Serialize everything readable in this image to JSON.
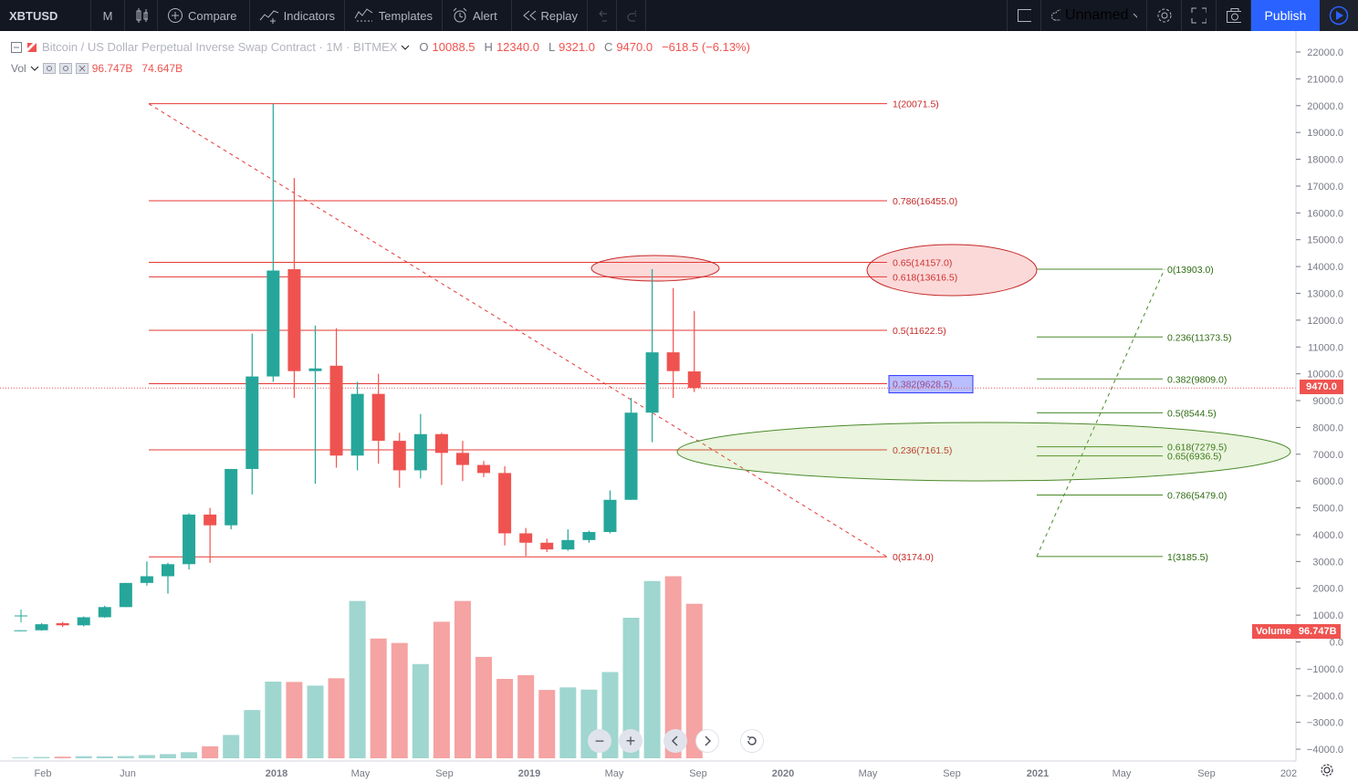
{
  "toolbar": {
    "symbol": "XBTUSD",
    "interval": "M",
    "compare": "Compare",
    "indicators": "Indicators",
    "templates": "Templates",
    "alert": "Alert",
    "replay": "Replay",
    "layout_name": "Unnamed",
    "publish": "Publish"
  },
  "legend": {
    "title": "Bitcoin / US Dollar Perpetual Inverse Swap Contract · 1M · BITMEX",
    "o_label": "O",
    "o_value": "10088.5",
    "h_label": "H",
    "h_value": "12340.0",
    "l_label": "L",
    "l_value": "9321.0",
    "c_label": "C",
    "c_value": "9470.0",
    "change": "−618.5 (−6.13%)",
    "vol_label": "Vol",
    "vol_value1": "96.747B",
    "vol_value2": "74.647B"
  },
  "badges": {
    "price": "9470.0",
    "volume_label": "Volume",
    "volume_value": "96.747B"
  },
  "colors": {
    "up": "#26a69a",
    "down": "#ef5350",
    "up_volume": "#9fd6d0",
    "down_volume": "#f5a3a3",
    "fib_red": "#e53935",
    "fib_green": "#4a8a2a"
  },
  "chart_data": {
    "type": "candlestick",
    "y_axis_ticks": [
      "22000.0",
      "21000.0",
      "20000.0",
      "19000.0",
      "18000.0",
      "17000.0",
      "16000.0",
      "15000.0",
      "14000.0",
      "13000.0",
      "12000.0",
      "11000.0",
      "10000.0",
      "9000.0",
      "8000.0",
      "7000.0",
      "6000.0",
      "5000.0",
      "4000.0",
      "3000.0",
      "2000.0",
      "1000.0",
      "0.0",
      "−1000.0",
      "−2000.0",
      "−3000.0",
      "−4000.0"
    ],
    "x_axis_ticks": [
      "Feb",
      "Jun",
      "2018",
      "May",
      "Sep",
      "2019",
      "May",
      "Sep",
      "2020",
      "May",
      "Sep",
      "2021",
      "May",
      "Sep",
      "202"
    ],
    "candles": [
      {
        "o": 430,
        "h": 440,
        "l": 420,
        "c": 435,
        "v": 0.5
      },
      {
        "o": 435,
        "h": 700,
        "l": 420,
        "c": 660,
        "v": 0.8
      },
      {
        "o": 700,
        "h": 750,
        "l": 560,
        "c": 620,
        "v": 1.0
      },
      {
        "o": 620,
        "h": 950,
        "l": 580,
        "c": 920,
        "v": 1.3
      },
      {
        "o": 920,
        "h": 1350,
        "l": 900,
        "c": 1300,
        "v": 1.2
      },
      {
        "o": 1300,
        "h": 2200,
        "l": 1300,
        "c": 2200,
        "v": 1.4
      },
      {
        "o": 2200,
        "h": 3000,
        "l": 2100,
        "c": 2450,
        "v": 2.0
      },
      {
        "o": 2450,
        "h": 2950,
        "l": 1800,
        "c": 2900,
        "v": 2.6
      },
      {
        "o": 2900,
        "h": 4800,
        "l": 2700,
        "c": 4750,
        "v": 3.8
      },
      {
        "o": 4750,
        "h": 5000,
        "l": 2950,
        "c": 4350,
        "v": 7.5
      },
      {
        "o": 4350,
        "h": 6450,
        "l": 4200,
        "c": 6450,
        "v": 14.6
      },
      {
        "o": 6450,
        "h": 11500,
        "l": 5500,
        "c": 9900,
        "v": 30.2
      },
      {
        "o": 9900,
        "h": 20071,
        "l": 9700,
        "c": 13850,
        "v": 48.0
      },
      {
        "o": 13900,
        "h": 17300,
        "l": 9100,
        "c": 10100,
        "v": 47.8
      },
      {
        "o": 10100,
        "h": 11800,
        "l": 5900,
        "c": 10200,
        "v": 45.5
      },
      {
        "o": 10300,
        "h": 11700,
        "l": 6500,
        "c": 6950,
        "v": 50.1
      },
      {
        "o": 6950,
        "h": 9700,
        "l": 6400,
        "c": 9250,
        "v": 98.5
      },
      {
        "o": 9250,
        "h": 10000,
        "l": 6650,
        "c": 7500,
        "v": 75.0
      },
      {
        "o": 7500,
        "h": 7800,
        "l": 5750,
        "c": 6400,
        "v": 72.2
      },
      {
        "o": 6400,
        "h": 8500,
        "l": 6100,
        "c": 7750,
        "v": 59.0
      },
      {
        "o": 7750,
        "h": 7800,
        "l": 5850,
        "c": 7050,
        "v": 85.5
      },
      {
        "o": 7050,
        "h": 7500,
        "l": 6000,
        "c": 6600,
        "v": 98.5
      },
      {
        "o": 6600,
        "h": 6750,
        "l": 6150,
        "c": 6300,
        "v": 63.5
      },
      {
        "o": 6300,
        "h": 6550,
        "l": 3600,
        "c": 4050,
        "v": 49.7
      },
      {
        "o": 4050,
        "h": 4250,
        "l": 3200,
        "c": 3700,
        "v": 52.0
      },
      {
        "o": 3700,
        "h": 3850,
        "l": 3350,
        "c": 3450,
        "v": 42.8
      },
      {
        "o": 3450,
        "h": 4200,
        "l": 3400,
        "c": 3800,
        "v": 44.4
      },
      {
        "o": 3800,
        "h": 4150,
        "l": 3700,
        "c": 4100,
        "v": 43.0
      },
      {
        "o": 4100,
        "h": 5650,
        "l": 4050,
        "c": 5300,
        "v": 54.0
      },
      {
        "o": 5300,
        "h": 9100,
        "l": 5300,
        "c": 8550,
        "v": 88.0
      },
      {
        "o": 8550,
        "h": 13903,
        "l": 7450,
        "c": 10800,
        "v": 111.0
      },
      {
        "o": 10800,
        "h": 13200,
        "l": 9100,
        "c": 10100,
        "v": 114.0
      },
      {
        "o": 10088.5,
        "h": 12340,
        "l": 9321,
        "c": 9470,
        "v": 96.747
      }
    ],
    "fib_retracement_red": {
      "levels": [
        {
          "label": "1(20071.5)",
          "price": 20071.5
        },
        {
          "label": "0.786(16455.0)",
          "price": 16455.0
        },
        {
          "label": "0.65(14157.0)",
          "price": 14157.0
        },
        {
          "label": "0.618(13616.5)",
          "price": 13616.5
        },
        {
          "label": "0.5(11622.5)",
          "price": 11622.5
        },
        {
          "label": "0.382(9628.5)",
          "price": 9628.5
        },
        {
          "label": "0.236(7161.5)",
          "price": 7161.5
        },
        {
          "label": "0(3174.0)",
          "price": 3174.0
        }
      ]
    },
    "fib_retracement_green": {
      "levels": [
        {
          "label": "0(13903.0)",
          "price": 13903.0
        },
        {
          "label": "0.236(11373.5)",
          "price": 11373.5
        },
        {
          "label": "0.382(9809.0)",
          "price": 9809.0
        },
        {
          "label": "0.5(8544.5)",
          "price": 8544.5
        },
        {
          "label": "0.618(7279.5)",
          "price": 7279.5
        },
        {
          "label": "0.65(6936.5)",
          "price": 6936.5
        },
        {
          "label": "0.786(5479.0)",
          "price": 5479.0
        },
        {
          "label": "1(3185.5)",
          "price": 3185.5
        }
      ]
    },
    "last_price": 9470.0
  }
}
